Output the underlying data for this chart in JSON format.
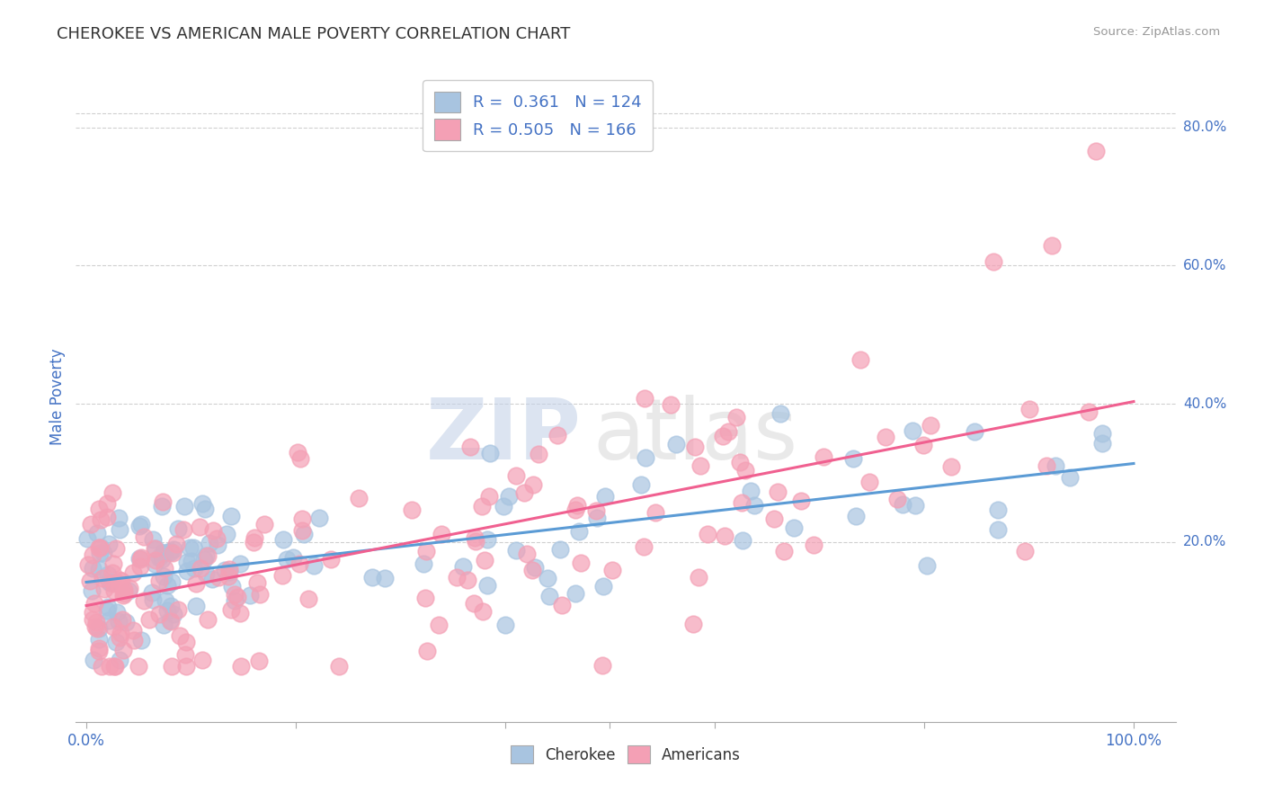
{
  "title": "CHEROKEE VS AMERICAN MALE POVERTY CORRELATION CHART",
  "source": "Source: ZipAtlas.com",
  "ylabel": "Male Poverty",
  "watermark_zip": "ZIP",
  "watermark_atlas": "atlas",
  "legend_r1": "0.361",
  "legend_n1": "124",
  "legend_r2": "0.505",
  "legend_n2": "166",
  "cherokee_color": "#a8c4e0",
  "americans_color": "#f4a0b5",
  "cherokee_line_color": "#5b9bd5",
  "americans_line_color": "#f06090",
  "title_color": "#333333",
  "axis_label_color": "#4472c4",
  "tick_color": "#4472c4",
  "source_color": "#999999",
  "legend_text_color": "#333333",
  "background_color": "#ffffff",
  "grid_color": "#d0d0d0",
  "cherokee_seed": 12,
  "americans_seed": 99
}
